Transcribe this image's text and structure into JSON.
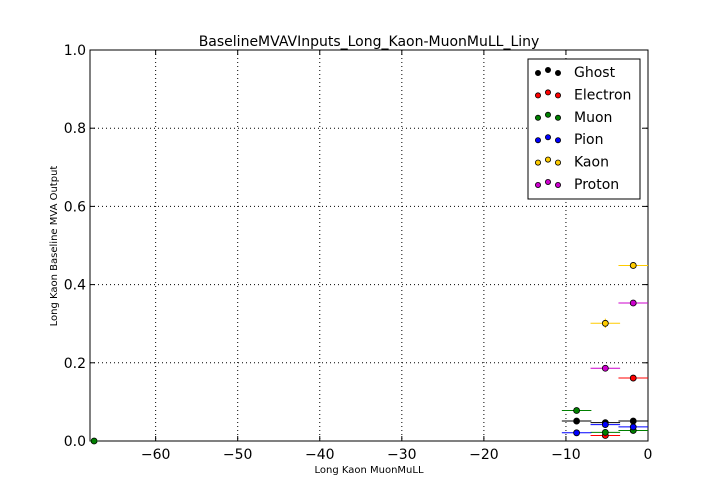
{
  "chart_data": {
    "type": "scatter",
    "title": "BaselineMVAVInputs_Long_Kaon-MuonMuLL_Liny",
    "xlabel": "Long Kaon MuonMuLL",
    "ylabel": "Long Kaon Baseline MVA Output",
    "xlim": [
      -68,
      0
    ],
    "ylim": [
      0,
      1.0
    ],
    "xticks": [
      -60,
      -50,
      -40,
      -30,
      -20,
      -10,
      0
    ],
    "xtick_labels": [
      "−60",
      "−50",
      "−40",
      "−30",
      "−20",
      "−10",
      "0"
    ],
    "yticks": [
      0.0,
      0.2,
      0.4,
      0.6,
      0.8,
      1.0
    ],
    "ytick_labels": [
      "0.0",
      "0.2",
      "0.4",
      "0.6",
      "0.8",
      "1.0"
    ],
    "grid": true,
    "legend_position": "top-right",
    "series": [
      {
        "name": "Ghost",
        "color": "#000000",
        "points": [
          {
            "x": -8.7,
            "y": 0.051,
            "xerr": 1.8
          },
          {
            "x": -5.2,
            "y": 0.047,
            "xerr": 1.8
          },
          {
            "x": -1.8,
            "y": 0.051,
            "xerr": 1.8
          }
        ]
      },
      {
        "name": "Electron",
        "color": "#ff0000",
        "points": [
          {
            "x": -5.2,
            "y": 0.014,
            "xerr": 1.8
          },
          {
            "x": -1.8,
            "y": 0.161,
            "xerr": 1.8
          }
        ]
      },
      {
        "name": "Muon",
        "color": "#008000",
        "points": [
          {
            "x": -67.5,
            "y": 0.0,
            "xerr": 0.5
          },
          {
            "x": -8.7,
            "y": 0.078,
            "xerr": 1.8
          },
          {
            "x": -5.2,
            "y": 0.022,
            "xerr": 1.8
          },
          {
            "x": -1.8,
            "y": 0.027,
            "xerr": 1.8
          }
        ]
      },
      {
        "name": "Pion",
        "color": "#0000ff",
        "points": [
          {
            "x": -8.7,
            "y": 0.021,
            "xerr": 1.8
          },
          {
            "x": -5.2,
            "y": 0.042,
            "xerr": 1.8
          },
          {
            "x": -1.8,
            "y": 0.036,
            "xerr": 1.8
          }
        ]
      },
      {
        "name": "Kaon",
        "color": "#ffcc00",
        "points": [
          {
            "x": -5.2,
            "y": 0.301,
            "xerr": 1.8,
            "yerr": 0.012
          },
          {
            "x": -1.8,
            "y": 0.449,
            "xerr": 1.8
          }
        ]
      },
      {
        "name": "Proton",
        "color": "#cc00cc",
        "points": [
          {
            "x": -5.2,
            "y": 0.186,
            "xerr": 1.8
          },
          {
            "x": -1.8,
            "y": 0.353,
            "xerr": 1.8
          }
        ]
      }
    ]
  }
}
